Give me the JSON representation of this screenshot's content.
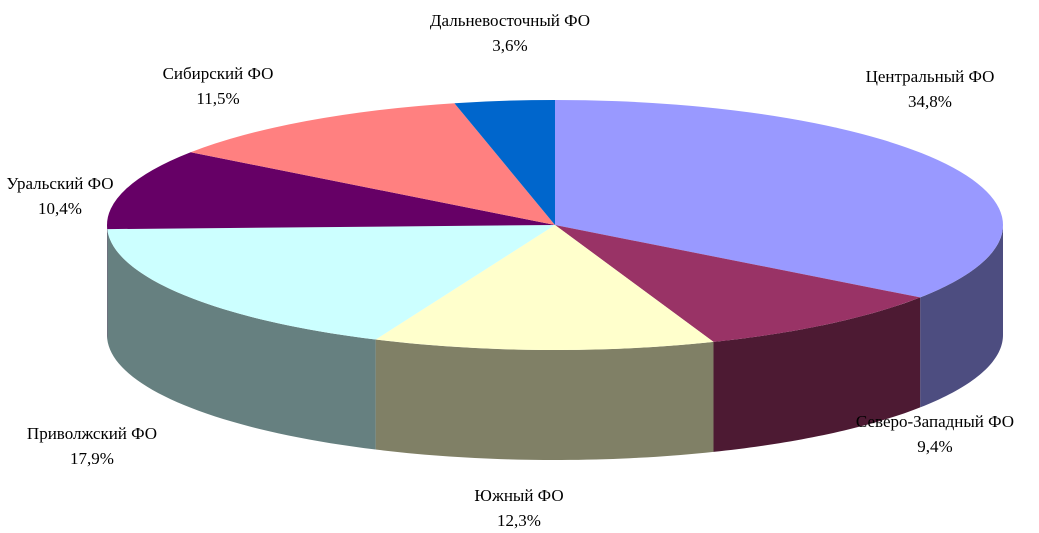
{
  "chart_data": {
    "type": "pie",
    "categories": [
      "Центральный ФО",
      "Северо-Западный ФО",
      "Южный ФО",
      "Приволжский ФО",
      "Уральский ФО",
      "Сибирский ФО",
      "Дальневосточный ФО"
    ],
    "values": [
      34.8,
      9.4,
      12.3,
      17.9,
      10.4,
      11.5,
      3.6
    ],
    "value_labels": [
      "34,8%",
      "9,4%",
      "12,3%",
      "17,9%",
      "10,4%",
      "11,5%",
      "3,6%"
    ],
    "colors": [
      "#9999ff",
      "#993366",
      "#ffffcc",
      "#ccffff",
      "#660066",
      "#ff8080",
      "#0066cc"
    ]
  }
}
